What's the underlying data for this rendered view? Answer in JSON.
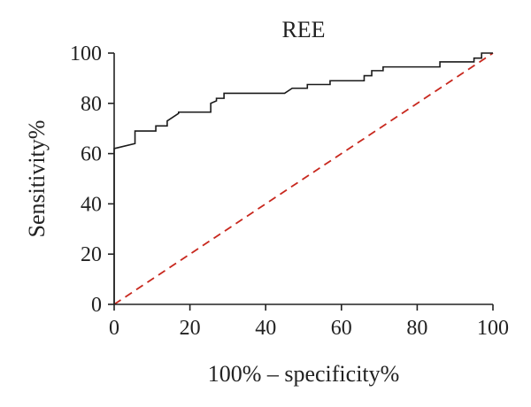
{
  "chart_data": {
    "type": "line",
    "title": "REE",
    "xlabel": "100% – specificity%",
    "ylabel": "Sensitivity%",
    "xlim": [
      0,
      100
    ],
    "ylim": [
      0,
      100
    ],
    "xticks": [
      "0",
      "20",
      "40",
      "60",
      "80",
      "100"
    ],
    "yticks": [
      "0",
      "20",
      "40",
      "60",
      "80",
      "100"
    ],
    "grid": false,
    "colors": {
      "roc": "#1a1a1a",
      "reference": "#c8281e"
    },
    "series": [
      {
        "x": [
          0,
          0,
          5.5,
          5.5,
          11,
          11,
          14,
          14,
          17,
          17,
          25.5,
          25.5,
          27,
          27,
          29,
          29,
          45,
          47,
          51,
          51,
          57,
          57,
          66,
          66,
          68,
          68,
          71,
          71,
          86,
          86,
          95,
          95,
          97,
          97,
          100
        ],
        "y": [
          0,
          62,
          64,
          69,
          69,
          71,
          71,
          73,
          76,
          76.5,
          76.5,
          80,
          81,
          82,
          82,
          84,
          84,
          86,
          86,
          87.5,
          87.5,
          89,
          89,
          91,
          91,
          93,
          93,
          94.5,
          94.5,
          96.5,
          96.5,
          98,
          98,
          100,
          100
        ]
      },
      {
        "x": [
          0,
          100
        ],
        "y": [
          0,
          100
        ]
      }
    ]
  }
}
